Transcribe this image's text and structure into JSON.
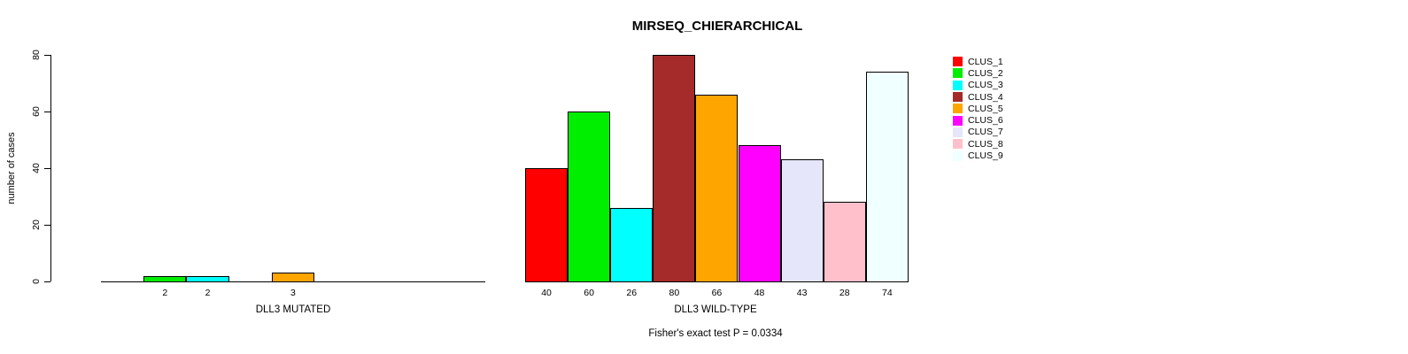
{
  "title": "MIRSEQ_CHIERARCHICAL",
  "chart_data": {
    "type": "bar",
    "title": "MIRSEQ_CHIERARCHICAL",
    "ylabel": "number of cases",
    "xlabel": "",
    "ylim": [
      0,
      80
    ],
    "yticks": [
      0,
      20,
      40,
      60,
      80
    ],
    "grid": false,
    "legend_position": "right",
    "categories": [
      "CLUS_1",
      "CLUS_2",
      "CLUS_3",
      "CLUS_4",
      "CLUS_5",
      "CLUS_6",
      "CLUS_7",
      "CLUS_8",
      "CLUS_9"
    ],
    "legend": [
      {
        "name": "CLUS_1",
        "color": "#FF0000"
      },
      {
        "name": "CLUS_2",
        "color": "#00EE00"
      },
      {
        "name": "CLUS_3",
        "color": "#00FFFF"
      },
      {
        "name": "CLUS_4",
        "color": "#A52A2A"
      },
      {
        "name": "CLUS_5",
        "color": "#FFA500"
      },
      {
        "name": "CLUS_6",
        "color": "#FF00FF"
      },
      {
        "name": "CLUS_7",
        "color": "#E6E6FA"
      },
      {
        "name": "CLUS_8",
        "color": "#FFC0CB"
      },
      {
        "name": "CLUS_9",
        "color": "#F0FFFF"
      }
    ],
    "groups": [
      {
        "label": "DLL3 MUTATED",
        "values": [
          0,
          2,
          2,
          0,
          3,
          0,
          0,
          0,
          0
        ]
      },
      {
        "label": "DLL3 WILD-TYPE",
        "values": [
          40,
          60,
          26,
          80,
          66,
          48,
          43,
          28,
          74
        ]
      }
    ],
    "footer": "Fisher's exact test P = 0.0334"
  }
}
